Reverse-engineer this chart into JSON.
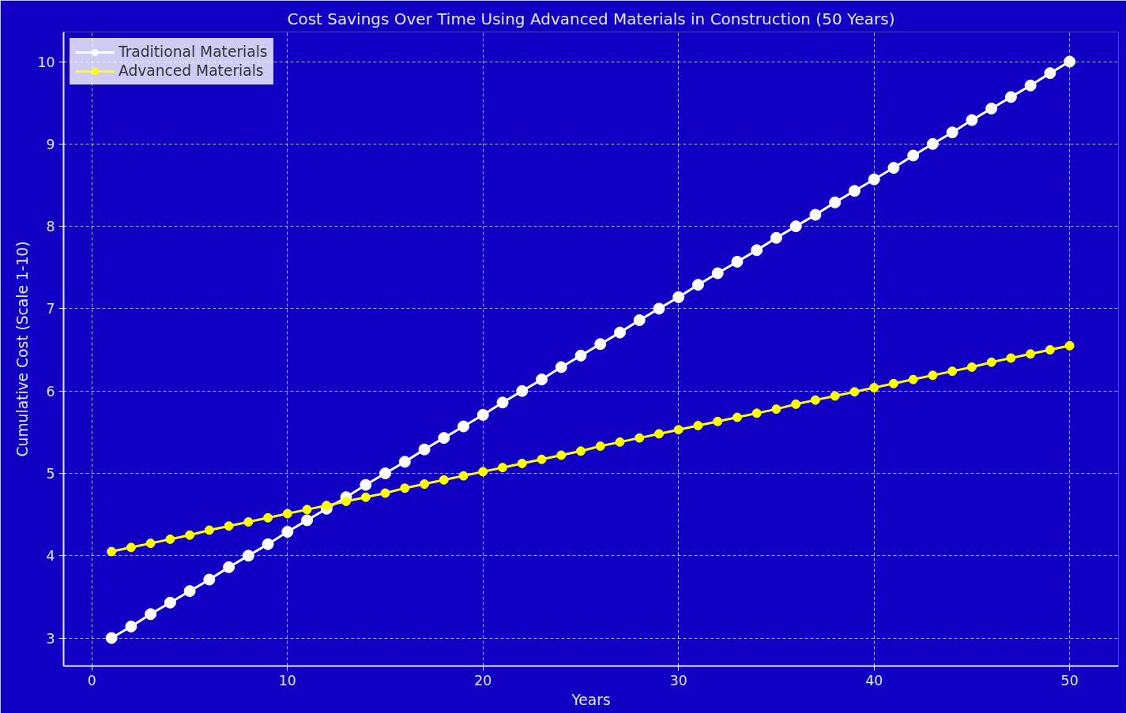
{
  "chart_data": {
    "type": "line",
    "title": "Cost Savings Over Time Using Advanced Materials in Construction (50 Years)",
    "xlabel": "Years",
    "ylabel": "Cumulative Cost (Scale 1-10)",
    "x": [
      1,
      2,
      3,
      4,
      5,
      6,
      7,
      8,
      9,
      10,
      11,
      12,
      13,
      14,
      15,
      16,
      17,
      18,
      19,
      20,
      21,
      22,
      23,
      24,
      25,
      26,
      27,
      28,
      29,
      30,
      31,
      32,
      33,
      34,
      35,
      36,
      37,
      38,
      39,
      40,
      41,
      42,
      43,
      44,
      45,
      46,
      47,
      48,
      49,
      50
    ],
    "series": [
      {
        "name": "Traditional Materials",
        "color": "#ffffff",
        "values": [
          3.0,
          3.14,
          3.29,
          3.43,
          3.57,
          3.71,
          3.86,
          4.0,
          4.14,
          4.29,
          4.43,
          4.57,
          4.71,
          4.86,
          5.0,
          5.14,
          5.29,
          5.43,
          5.57,
          5.71,
          5.86,
          6.0,
          6.14,
          6.29,
          6.43,
          6.57,
          6.71,
          6.86,
          7.0,
          7.14,
          7.29,
          7.43,
          7.57,
          7.71,
          7.86,
          8.0,
          8.14,
          8.29,
          8.43,
          8.57,
          8.71,
          8.86,
          9.0,
          9.14,
          9.29,
          9.43,
          9.57,
          9.71,
          9.86,
          10.0
        ]
      },
      {
        "name": "Advanced Materials",
        "color": "#ffff00",
        "values": [
          4.05,
          4.1,
          4.15,
          4.2,
          4.25,
          4.31,
          4.36,
          4.41,
          4.46,
          4.51,
          4.56,
          4.61,
          4.66,
          4.71,
          4.76,
          4.82,
          4.87,
          4.92,
          4.97,
          5.02,
          5.07,
          5.12,
          5.17,
          5.22,
          5.27,
          5.33,
          5.38,
          5.43,
          5.48,
          5.53,
          5.58,
          5.63,
          5.68,
          5.73,
          5.78,
          5.84,
          5.89,
          5.94,
          5.99,
          6.04,
          6.09,
          6.14,
          6.19,
          6.24,
          6.29,
          6.35,
          6.4,
          6.45,
          6.5,
          6.55
        ]
      }
    ],
    "xlim": [
      -1.45,
      52.5
    ],
    "ylim": [
      2.66,
      10.36
    ],
    "xticks": [
      0,
      10,
      20,
      30,
      40,
      50
    ],
    "yticks": [
      3,
      4,
      5,
      6,
      7,
      8,
      9,
      10
    ],
    "grid": true,
    "legend": "top left",
    "marker": "circle",
    "line_style": "solid"
  }
}
